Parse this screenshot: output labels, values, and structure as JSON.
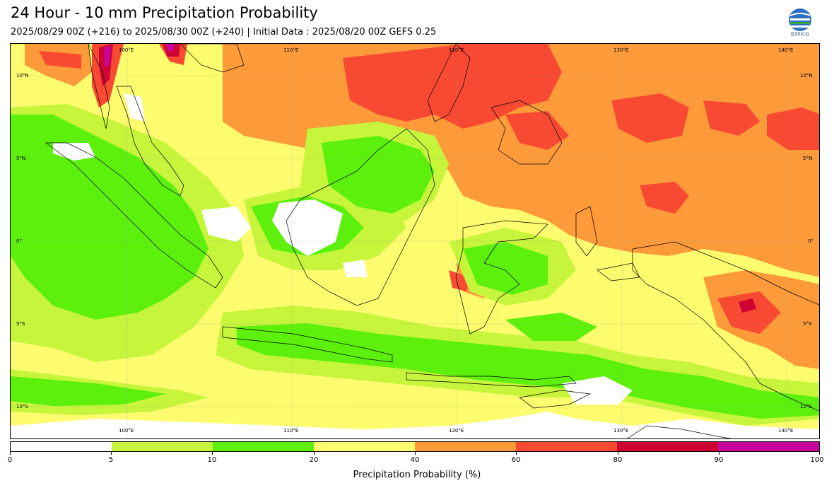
{
  "header": {
    "title": "24 Hour - 10 mm Precipitation Probability",
    "subtitle": "2025/08/29 00Z (+216) to 2025/08/30 00Z (+240) | Initial Data : 2025/08/20 00Z GEFS 0.25",
    "logo_text": "BMKG"
  },
  "map": {
    "lon_labels_top": [
      "100°E",
      "110°E",
      "120°E",
      "130°E",
      "140°E"
    ],
    "lon_labels_bottom": [
      "100°E",
      "110°E",
      "120°E",
      "130°E",
      "140°E"
    ],
    "lat_labels_left": [
      "10°N",
      "5°N",
      "0°",
      "5°S",
      "10°S"
    ],
    "lat_labels_right": [
      "10°N",
      "5°N",
      "0°",
      "5°S",
      "10°S"
    ]
  },
  "colorbar": {
    "label": "Precipitation Probability (%)",
    "ticks": [
      "0",
      "5",
      "10",
      "20",
      "40",
      "60",
      "80",
      "90",
      "100"
    ],
    "colors": [
      "#ffffff",
      "#c6f53c",
      "#5cf00c",
      "#fcfc6e",
      "#fd9a3a",
      "#f84a32",
      "#cf0234",
      "#c9069a"
    ]
  }
}
